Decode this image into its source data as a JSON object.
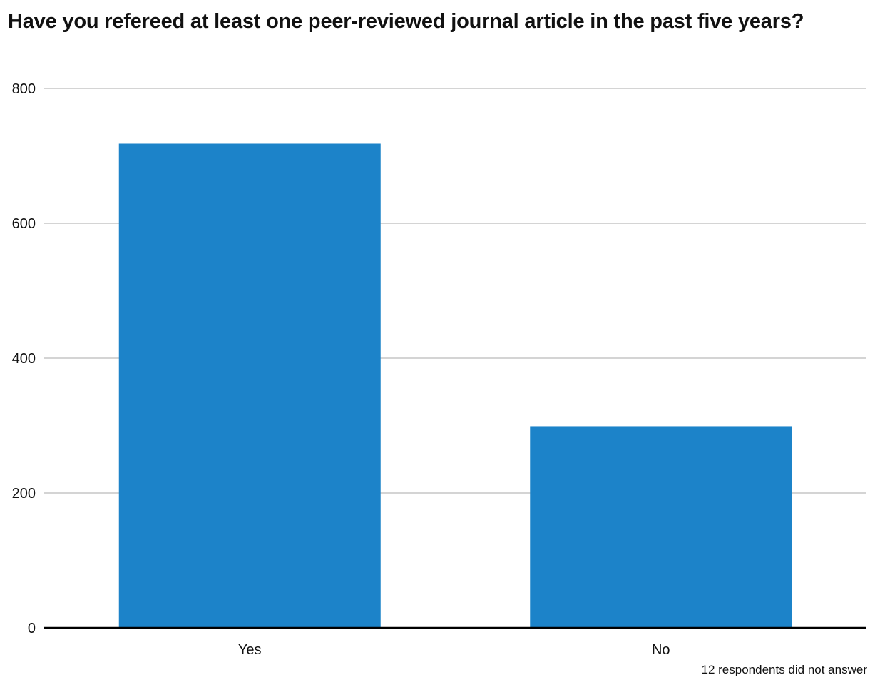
{
  "chart_data": {
    "type": "bar",
    "title": "Have you refereed at least one peer-reviewed journal article in the past five years?",
    "categories": [
      "Yes",
      "No"
    ],
    "values": [
      718,
      299
    ],
    "ylim": [
      0,
      800
    ],
    "yticks": [
      0,
      200,
      400,
      600,
      800
    ],
    "grid": true,
    "legend": "none",
    "bar_color": "#1c83c9",
    "grid_color": "#d4d4d4",
    "axis_color": "#000000",
    "note": "12 respondents did not answer"
  }
}
